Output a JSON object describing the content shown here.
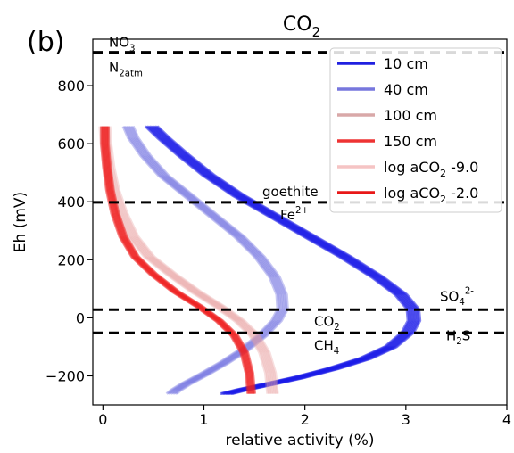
{
  "chart_data": {
    "type": "line",
    "panel_label": "(b)",
    "title": {
      "base": "CO",
      "sub": "2"
    },
    "xlabel": "relative activity (%)",
    "ylabel": "Eh (mV)",
    "xlim": [
      -0.1,
      4.0
    ],
    "ylim": [
      -300,
      960
    ],
    "xticks": [
      0,
      1,
      2,
      3,
      4
    ],
    "yticks": [
      -200,
      0,
      200,
      400,
      600,
      800
    ],
    "legend": {
      "placement": "top-right",
      "entries": [
        {
          "label": "10 cm",
          "color": "#2020e0",
          "alpha": 1.0
        },
        {
          "label": "40 cm",
          "color": "#7777dd",
          "alpha": 1.0
        },
        {
          "label": "100 cm",
          "color": "#d9a8a8",
          "alpha": 1.0
        },
        {
          "label": "150 cm",
          "color": "#ee3333",
          "alpha": 1.0
        },
        {
          "label": "log aCO",
          "sub": "2",
          "suffix": " -9.0",
          "color": "#f5c4c4",
          "alpha": 1.0
        },
        {
          "label": "log aCO",
          "sub": "2",
          "suffix": " -2.0",
          "color": "#e81818",
          "alpha": 1.0
        }
      ]
    },
    "redox_lines": [
      {
        "eh": 915,
        "upper": {
          "base": "NO",
          "sub": "3",
          "sup": "-"
        },
        "lower": {
          "base": "N",
          "sub": "2atm",
          "sup": ""
        },
        "side": "left"
      },
      {
        "eh": 398,
        "upper": {
          "base": "goethite",
          "sub": "",
          "sup": ""
        },
        "lower": {
          "base": "Fe",
          "sub": "",
          "sup": "2+"
        },
        "side": "mid"
      },
      {
        "eh": 28,
        "upper": {
          "base": "SO",
          "sub": "4",
          "sup": "2-"
        },
        "lower": {
          "base": "H",
          "sub": "2",
          "sup": "S",
          "supIsText": true
        },
        "side": "right"
      },
      {
        "eh": -52,
        "upper": {
          "base": "CO",
          "sub": "2",
          "sup": ""
        },
        "lower": {
          "base": "CH",
          "sub": "4",
          "sup": ""
        },
        "side": "mid2"
      }
    ],
    "series": [
      {
        "name": "10 cm",
        "color": "#1c1ce8",
        "x": [
          0.48,
          0.6,
          0.8,
          1.05,
          1.35,
          1.7,
          2.05,
          2.4,
          2.72,
          2.95,
          3.07,
          3.08,
          3.02,
          2.85,
          2.6,
          2.28,
          1.95,
          1.65,
          1.38,
          1.22
        ],
        "y": [
          660,
          620,
          560,
          490,
          420,
          350,
          280,
          210,
          140,
          80,
          30,
          -10,
          -50,
          -100,
          -140,
          -175,
          -205,
          -228,
          -248,
          -262
        ]
      },
      {
        "name": "40 cm",
        "color": "#6d6de0",
        "x": [
          0.25,
          0.3,
          0.42,
          0.6,
          0.85,
          1.1,
          1.35,
          1.55,
          1.7,
          1.77,
          1.78,
          1.72,
          1.58,
          1.4,
          1.2,
          1.0,
          0.82,
          0.72,
          0.68
        ],
        "y": [
          660,
          620,
          560,
          490,
          420,
          350,
          280,
          210,
          140,
          80,
          30,
          -10,
          -60,
          -110,
          -155,
          -195,
          -228,
          -250,
          -262
        ]
      },
      {
        "name": "150 cm",
        "color": "#ee2020",
        "x": [
          0.02,
          0.02,
          0.04,
          0.07,
          0.12,
          0.2,
          0.32,
          0.5,
          0.72,
          0.95,
          1.15,
          1.3,
          1.4,
          1.45,
          1.47
        ],
        "y": [
          660,
          600,
          520,
          440,
          360,
          280,
          210,
          150,
          90,
          40,
          -10,
          -60,
          -120,
          -190,
          -262
        ]
      },
      {
        "name": "100 cm",
        "color": "#e8a0a0",
        "x": [
          0.02,
          0.03,
          0.06,
          0.11,
          0.19,
          0.3,
          0.46,
          0.68,
          0.92,
          1.15,
          1.35,
          1.5,
          1.6,
          1.66,
          1.68
        ],
        "y": [
          660,
          600,
          520,
          440,
          360,
          280,
          210,
          150,
          90,
          40,
          -10,
          -60,
          -120,
          -190,
          -262
        ]
      }
    ]
  }
}
